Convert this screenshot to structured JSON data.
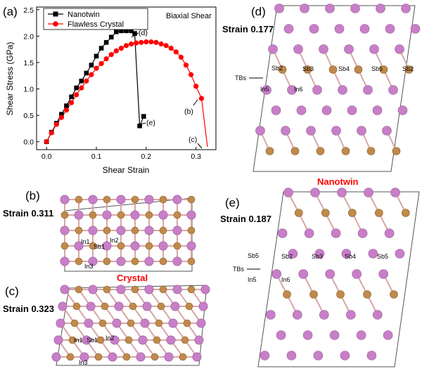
{
  "figure": {
    "panel_labels": [
      "(a)",
      "(b)",
      "(c)",
      "(d)",
      "(e)"
    ],
    "strain_b": "Strain 0.311",
    "strain_c": "Strain 0.323",
    "strain_d": "Strain 0.177",
    "strain_e": "Strain 0.187",
    "crystal_label": "Crystal",
    "nanotwin_label": "Nanotwin",
    "atom_labels_b": [
      "In1",
      "In2",
      "Sb1",
      "In3"
    ],
    "atom_labels_c": [
      "In1",
      "Sb1",
      "In2",
      "In3"
    ],
    "atom_labels_d": [
      "TBs",
      "Sb2",
      "Sb3",
      "Sb4",
      "Sb5",
      "Sb2",
      "In5",
      "In6"
    ],
    "atom_labels_e": [
      "Sb5",
      "Sb2",
      "Sb3",
      "Sb4",
      "Sb5",
      "TBs",
      "In5",
      "In6"
    ],
    "colors": {
      "in_atom": "#c77fc7",
      "sb_atom": "#c08a4a",
      "bond": "#d9a6a6",
      "nanotwin_curve": "#000000",
      "crystal_curve": "#ff0000"
    }
  },
  "chart_data": {
    "type": "line",
    "xlabel": "Shear Strain",
    "ylabel": "Shear Stress (GPa)",
    "annotation": "Biaxial Shear",
    "xlim": [
      -0.02,
      0.34
    ],
    "ylim": [
      -0.15,
      2.55
    ],
    "xticks": [
      "0.0",
      "0.1",
      "0.2",
      "0.3"
    ],
    "yticks": [
      "0.0",
      "0.5",
      "1.0",
      "1.5",
      "2.0",
      "2.5"
    ],
    "legend_position": "top-left",
    "point_labels": [
      "(d)",
      "(b)",
      "(e)",
      "(c)"
    ],
    "series": [
      {
        "name": "Nanotwin",
        "color": "#000000",
        "marker": "square",
        "x": [
          0.0,
          0.01,
          0.02,
          0.03,
          0.04,
          0.05,
          0.06,
          0.07,
          0.08,
          0.09,
          0.1,
          0.11,
          0.12,
          0.13,
          0.14,
          0.15,
          0.16,
          0.17,
          0.177,
          0.187,
          0.195
        ],
        "y": [
          0.0,
          0.18,
          0.35,
          0.52,
          0.68,
          0.85,
          1.02,
          1.15,
          1.3,
          1.45,
          1.62,
          1.77,
          1.88,
          1.98,
          2.08,
          2.1,
          2.1,
          2.1,
          2.05,
          0.3,
          0.48
        ]
      },
      {
        "name": "Flawless Crystal",
        "color": "#ff0000",
        "marker": "circle",
        "x": [
          0.0,
          0.01,
          0.02,
          0.03,
          0.04,
          0.05,
          0.06,
          0.07,
          0.08,
          0.09,
          0.1,
          0.11,
          0.12,
          0.13,
          0.14,
          0.15,
          0.16,
          0.17,
          0.18,
          0.19,
          0.2,
          0.21,
          0.22,
          0.23,
          0.24,
          0.25,
          0.26,
          0.27,
          0.28,
          0.29,
          0.3,
          0.311,
          0.323
        ],
        "y": [
          0.0,
          0.17,
          0.33,
          0.46,
          0.6,
          0.74,
          0.89,
          1.02,
          1.15,
          1.27,
          1.39,
          1.48,
          1.57,
          1.65,
          1.72,
          1.77,
          1.82,
          1.85,
          1.87,
          1.88,
          1.89,
          1.89,
          1.88,
          1.85,
          1.82,
          1.77,
          1.7,
          1.6,
          1.45,
          1.27,
          1.05,
          0.82,
          -0.1
        ]
      }
    ]
  }
}
